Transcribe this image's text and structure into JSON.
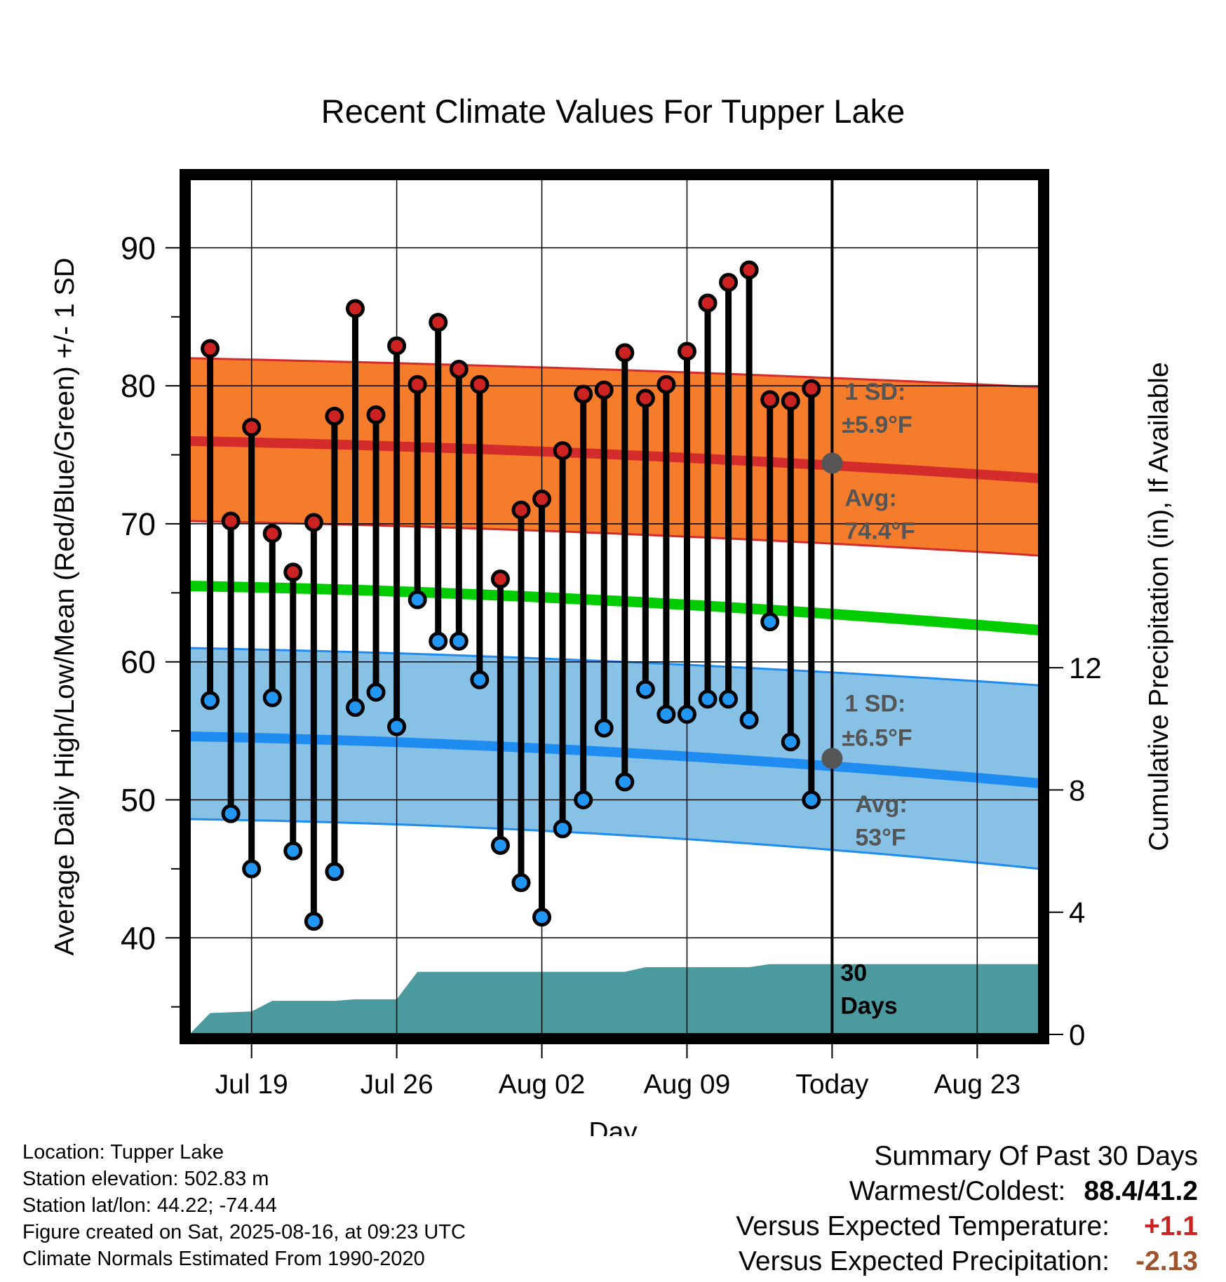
{
  "chart_data": {
    "type": "line",
    "title": "Recent Climate Values For Tupper Lake",
    "xlabel": "Day",
    "ylabel": "Average Daily High/Low/Mean (Red/Blue/Green) +/- 1 SD",
    "y2label": "Cumulative Precipitation (in), If Available",
    "ylim": [
      33,
      95
    ],
    "y2lim": [
      0,
      28
    ],
    "xlim": [
      "2025-07-16",
      "2025-08-26"
    ],
    "grid": true,
    "y_ticks": [
      40,
      50,
      60,
      70,
      80,
      90
    ],
    "y2_ticks": [
      0,
      4,
      8,
      12
    ],
    "x_ticks": [
      {
        "date": "2025-07-19",
        "label": "Jul 19"
      },
      {
        "date": "2025-07-26",
        "label": "Jul 26"
      },
      {
        "date": "2025-08-02",
        "label": "Aug 02"
      },
      {
        "date": "2025-08-09",
        "label": "Aug 09"
      },
      {
        "date": "2025-08-16",
        "label": "Today"
      },
      {
        "date": "2025-08-23",
        "label": "Aug 23"
      }
    ],
    "today": "2025-08-16",
    "daily": {
      "dates": [
        "2025-07-17",
        "2025-07-18",
        "2025-07-19",
        "2025-07-20",
        "2025-07-21",
        "2025-07-22",
        "2025-07-23",
        "2025-07-24",
        "2025-07-25",
        "2025-07-26",
        "2025-07-27",
        "2025-07-28",
        "2025-07-29",
        "2025-07-30",
        "2025-07-31",
        "2025-08-01",
        "2025-08-02",
        "2025-08-03",
        "2025-08-04",
        "2025-08-05",
        "2025-08-06",
        "2025-08-07",
        "2025-08-08",
        "2025-08-09",
        "2025-08-10",
        "2025-08-11",
        "2025-08-12",
        "2025-08-13",
        "2025-08-14",
        "2025-08-15"
      ],
      "highs": [
        82.7,
        70.2,
        77.0,
        69.3,
        66.5,
        70.1,
        77.8,
        85.6,
        77.9,
        82.9,
        80.1,
        84.6,
        81.2,
        80.1,
        66.0,
        71.0,
        71.8,
        75.3,
        79.4,
        79.7,
        82.4,
        79.1,
        80.1,
        82.5,
        86.0,
        87.5,
        88.4,
        79.0,
        78.9,
        79.8
      ],
      "lows": [
        57.2,
        49.0,
        45.0,
        57.4,
        46.3,
        41.2,
        44.8,
        56.7,
        57.8,
        55.3,
        64.5,
        61.5,
        61.5,
        58.7,
        46.7,
        44.0,
        41.5,
        47.9,
        50.0,
        55.2,
        51.3,
        58.0,
        56.2,
        56.2,
        57.3,
        57.3,
        55.8,
        62.9,
        54.2,
        50.0
      ]
    },
    "normals": {
      "dates": [
        "2025-07-16",
        "2025-08-26"
      ],
      "high_mean": [
        76.0,
        73.3
      ],
      "high_sd_upper": [
        82.0,
        79.9
      ],
      "high_sd_lower": [
        70.2,
        67.7
      ],
      "mean": [
        65.5,
        62.3
      ],
      "low_mean": [
        54.6,
        51.2
      ],
      "low_sd_upper": [
        61.0,
        58.3
      ],
      "low_sd_lower": [
        48.6,
        45.0
      ]
    },
    "precip": {
      "dates": [
        "2025-07-16",
        "2025-07-17",
        "2025-07-19",
        "2025-07-20",
        "2025-07-23",
        "2025-07-24",
        "2025-07-26",
        "2025-07-27",
        "2025-08-06",
        "2025-08-07",
        "2025-08-12",
        "2025-08-13",
        "2025-08-26"
      ],
      "values": [
        0.0,
        0.7,
        0.75,
        1.1,
        1.1,
        1.15,
        1.15,
        2.05,
        2.05,
        2.2,
        2.2,
        2.3,
        2.3
      ]
    },
    "annotations": {
      "high_sd_label": "1 SD:",
      "high_sd_value": "±5.9°F",
      "high_avg_label": "Avg:",
      "high_avg_value": "74.4°F",
      "high_avg_today": 74.4,
      "low_sd_label": "1 SD:",
      "low_sd_value": "±6.5°F",
      "low_avg_label": "Avg:",
      "low_avg_value": "53°F",
      "low_avg_today": 53,
      "precip_label_1": "30",
      "precip_label_2": "Days"
    },
    "colors": {
      "high_band": "#f57c2a",
      "high_line": "#d42c2c",
      "low_band": "#87c1e6",
      "low_line": "#1e8cf0",
      "mean_line": "#00cc00",
      "precip": "#4a9aa0",
      "high_dot": "#cc2222",
      "low_dot": "#2196f3",
      "annotation": "#555555"
    }
  },
  "info": {
    "location": "Location: Tupper Lake",
    "elevation": "Station elevation: 502.83 m",
    "latlon": "Station lat/lon: 44.22; -74.44",
    "created": "Figure created on Sat, 2025-08-16, at 09:23 UTC",
    "normals": "Climate Normals Estimated From 1990-2020"
  },
  "summary": {
    "title": "Summary Of Past 30 Days",
    "warmest_label": "Warmest/Coldest:",
    "warmest_value": "88.4/41.2",
    "temp_label": "Versus Expected Temperature:",
    "temp_value": "+1.1",
    "precip_label": "Versus Expected Precipitation:",
    "precip_value": "-2.13"
  }
}
